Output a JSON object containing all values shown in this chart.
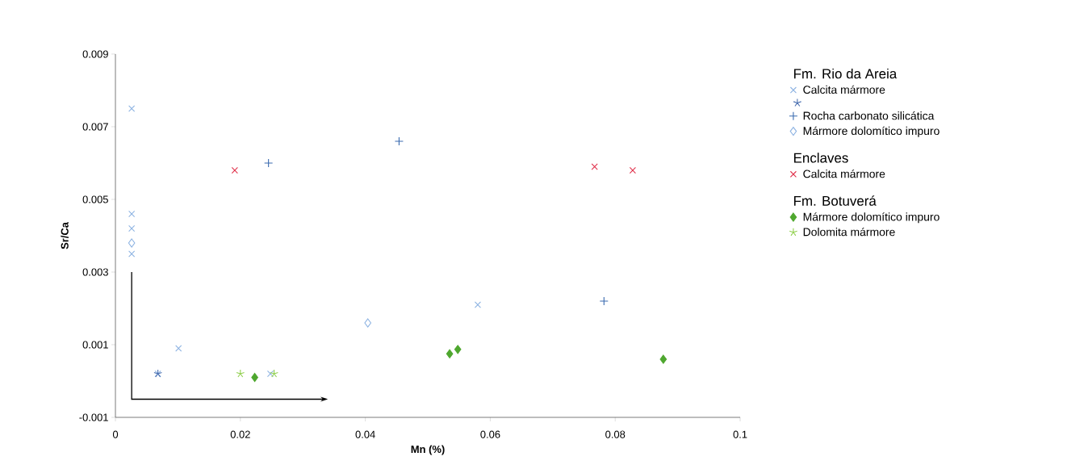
{
  "chart_data": {
    "type": "scatter",
    "xlabel": "Mn (%)",
    "ylabel": "Sr/Ca",
    "xlim": [
      0,
      0.1
    ],
    "ylim": [
      -0.001,
      0.009
    ],
    "xticks": [
      0,
      0.02,
      0.04,
      0.06,
      0.08,
      0.1
    ],
    "yticks": [
      -0.001,
      0.001,
      0.003,
      0.005,
      0.007,
      0.009
    ],
    "legend": "right",
    "grid": false,
    "annotations": [
      "Fm. Rio da Areia",
      "Enclaves",
      "Fm. Botuverá"
    ],
    "series": [
      {
        "name": "Calcita mármore",
        "color": "#8db3e2",
        "marker": "cross",
        "x": [
          0.0026,
          0.0026,
          0.0026,
          0.0026,
          0.0101,
          0.0068,
          0.0248,
          0.058
        ],
        "values": [
          0.0075,
          0.0046,
          0.0042,
          0.0035,
          0.0009,
          0.0002,
          0.0002,
          0.0021
        ]
      },
      {
        "color": "#4a6fb0",
        "x": [
          0.0068
        ],
        "values": [
          0.0002
        ]
      },
      {
        "name": "Rocha carbonato silicática",
        "color": "#3a6bb0",
        "marker": "plus",
        "x": [
          0.0245,
          0.0454,
          0.0782
        ],
        "values": [
          0.006,
          0.0066,
          0.0022
        ]
      },
      {
        "name": "Mármore dolomítico impuro",
        "color": "#8db3e2",
        "marker": "diamond_open",
        "x": [
          0.0026,
          0.0404
        ],
        "values": [
          0.0038,
          0.0016
        ]
      },
      {
        "name": "Calcita mármore",
        "color": "#e0304a",
        "marker": "cross",
        "x": [
          0.0191,
          0.0767,
          0.0828
        ],
        "values": [
          0.0058,
          0.0059,
          0.0058
        ]
      },
      {
        "name": "Mármore dolomítico impuro",
        "color": "#4ea72e",
        "marker": "diamond",
        "x": [
          0.0223,
          0.0535,
          0.0548,
          0.0877
        ],
        "values": [
          0.0001,
          0.00075,
          0.00087,
          0.0006
        ]
      },
      {
        "name": "Dolomita mármore",
        "color": "#92d050",
        "x": [
          0.02,
          0.0254
        ],
        "values": [
          0.0002,
          0.0002
        ]
      }
    ]
  }
}
